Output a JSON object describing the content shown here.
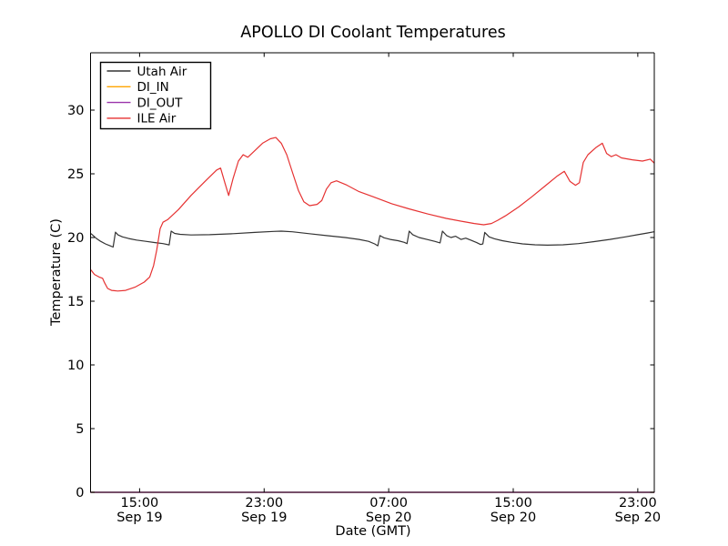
{
  "figure": {
    "title": "APOLLO DI Coolant Temperatures",
    "xlabel": "Date (GMT)",
    "ylabel": "Temperature (C)"
  },
  "chart_data": {
    "type": "line",
    "title": "APOLLO DI Coolant Temperatures",
    "xlabel": "Date (GMT)",
    "ylabel": "Temperature (C)",
    "x_unit": "hours since Sep 19 00:00 GMT",
    "xlim": [
      11.85,
      48.06
    ],
    "ylim": [
      0,
      34.5
    ],
    "grid": false,
    "legend_position": "upper left",
    "y_ticks": [
      0,
      5,
      10,
      15,
      20,
      25,
      30
    ],
    "x_ticks": [
      {
        "value": 15,
        "time": "15:00",
        "date": "Sep 19"
      },
      {
        "value": 23,
        "time": "23:00",
        "date": "Sep 19"
      },
      {
        "value": 31,
        "time": "07:00",
        "date": "Sep 20"
      },
      {
        "value": 39,
        "time": "15:00",
        "date": "Sep 20"
      },
      {
        "value": 47,
        "time": "23:00",
        "date": "Sep 20"
      }
    ],
    "series": [
      {
        "name": "Utah Air",
        "color": "#333333",
        "points": [
          [
            11.88,
            20.3
          ],
          [
            12.0,
            20.17
          ],
          [
            12.2,
            19.95
          ],
          [
            12.5,
            19.7
          ],
          [
            12.8,
            19.5
          ],
          [
            13.1,
            19.35
          ],
          [
            13.3,
            19.25
          ],
          [
            13.45,
            20.42
          ],
          [
            13.62,
            20.2
          ],
          [
            13.9,
            20.05
          ],
          [
            14.3,
            19.92
          ],
          [
            14.8,
            19.8
          ],
          [
            15.4,
            19.7
          ],
          [
            16.0,
            19.6
          ],
          [
            16.5,
            19.52
          ],
          [
            16.9,
            19.42
          ],
          [
            17.03,
            20.5
          ],
          [
            17.25,
            20.32
          ],
          [
            17.6,
            20.25
          ],
          [
            18.3,
            20.2
          ],
          [
            19.5,
            20.22
          ],
          [
            21.0,
            20.3
          ],
          [
            22.4,
            20.4
          ],
          [
            23.6,
            20.48
          ],
          [
            24.1,
            20.5
          ],
          [
            24.8,
            20.45
          ],
          [
            25.9,
            20.3
          ],
          [
            27.0,
            20.15
          ],
          [
            28.2,
            20.0
          ],
          [
            29.1,
            19.85
          ],
          [
            29.7,
            19.7
          ],
          [
            30.1,
            19.5
          ],
          [
            30.3,
            19.35
          ],
          [
            30.44,
            20.15
          ],
          [
            30.7,
            19.98
          ],
          [
            31.1,
            19.85
          ],
          [
            31.6,
            19.75
          ],
          [
            32.0,
            19.62
          ],
          [
            32.18,
            19.52
          ],
          [
            32.32,
            20.5
          ],
          [
            32.55,
            20.22
          ],
          [
            32.95,
            20.0
          ],
          [
            33.45,
            19.85
          ],
          [
            33.95,
            19.7
          ],
          [
            34.3,
            19.58
          ],
          [
            34.45,
            20.5
          ],
          [
            34.72,
            20.15
          ],
          [
            35.0,
            20.0
          ],
          [
            35.3,
            20.1
          ],
          [
            35.65,
            19.85
          ],
          [
            35.95,
            19.95
          ],
          [
            36.3,
            19.78
          ],
          [
            36.65,
            19.6
          ],
          [
            36.9,
            19.45
          ],
          [
            37.05,
            19.5
          ],
          [
            37.17,
            20.4
          ],
          [
            37.45,
            20.05
          ],
          [
            37.8,
            19.9
          ],
          [
            38.3,
            19.75
          ],
          [
            38.9,
            19.62
          ],
          [
            39.6,
            19.5
          ],
          [
            40.4,
            19.43
          ],
          [
            41.2,
            19.4
          ],
          [
            42.2,
            19.43
          ],
          [
            43.2,
            19.52
          ],
          [
            44.2,
            19.68
          ],
          [
            45.2,
            19.85
          ],
          [
            46.2,
            20.05
          ],
          [
            47.0,
            20.22
          ],
          [
            47.6,
            20.35
          ],
          [
            48.05,
            20.45
          ]
        ]
      },
      {
        "name": "DI_IN",
        "color": "#ffa500",
        "points": [
          [
            11.85,
            0
          ],
          [
            48.06,
            0
          ]
        ]
      },
      {
        "name": "DI_OUT",
        "color": "#9933aa",
        "points": [
          [
            11.85,
            0
          ],
          [
            48.06,
            0
          ]
        ]
      },
      {
        "name": "ILE Air",
        "color": "#e63232",
        "points": [
          [
            11.88,
            17.45
          ],
          [
            12.1,
            17.1
          ],
          [
            12.4,
            16.9
          ],
          [
            12.62,
            16.8
          ],
          [
            12.75,
            16.45
          ],
          [
            12.95,
            16.0
          ],
          [
            13.2,
            15.85
          ],
          [
            13.6,
            15.8
          ],
          [
            14.1,
            15.85
          ],
          [
            14.7,
            16.1
          ],
          [
            15.3,
            16.5
          ],
          [
            15.65,
            16.9
          ],
          [
            15.9,
            17.8
          ],
          [
            16.1,
            19.0
          ],
          [
            16.32,
            20.7
          ],
          [
            16.5,
            21.2
          ],
          [
            16.8,
            21.4
          ],
          [
            17.5,
            22.2
          ],
          [
            18.3,
            23.3
          ],
          [
            19.2,
            24.4
          ],
          [
            19.95,
            25.3
          ],
          [
            20.2,
            25.45
          ],
          [
            20.5,
            24.2
          ],
          [
            20.72,
            23.3
          ],
          [
            21.0,
            24.6
          ],
          [
            21.35,
            26.0
          ],
          [
            21.65,
            26.5
          ],
          [
            21.95,
            26.3
          ],
          [
            22.3,
            26.7
          ],
          [
            22.9,
            27.4
          ],
          [
            23.4,
            27.75
          ],
          [
            23.75,
            27.85
          ],
          [
            24.1,
            27.4
          ],
          [
            24.45,
            26.5
          ],
          [
            24.85,
            25.0
          ],
          [
            25.2,
            23.7
          ],
          [
            25.55,
            22.8
          ],
          [
            25.92,
            22.5
          ],
          [
            26.4,
            22.6
          ],
          [
            26.7,
            22.9
          ],
          [
            27.0,
            23.8
          ],
          [
            27.3,
            24.3
          ],
          [
            27.65,
            24.45
          ],
          [
            28.25,
            24.15
          ],
          [
            29.1,
            23.6
          ],
          [
            30.0,
            23.2
          ],
          [
            31.2,
            22.65
          ],
          [
            32.3,
            22.25
          ],
          [
            33.5,
            21.85
          ],
          [
            34.7,
            21.5
          ],
          [
            35.8,
            21.25
          ],
          [
            36.5,
            21.1
          ],
          [
            37.1,
            21.0
          ],
          [
            37.6,
            21.1
          ],
          [
            38.0,
            21.35
          ],
          [
            38.5,
            21.7
          ],
          [
            39.35,
            22.4
          ],
          [
            40.2,
            23.2
          ],
          [
            41.1,
            24.1
          ],
          [
            41.8,
            24.8
          ],
          [
            42.28,
            25.2
          ],
          [
            42.65,
            24.4
          ],
          [
            43.0,
            24.1
          ],
          [
            43.25,
            24.3
          ],
          [
            43.5,
            25.9
          ],
          [
            43.8,
            26.5
          ],
          [
            44.3,
            27.05
          ],
          [
            44.72,
            27.4
          ],
          [
            45.0,
            26.6
          ],
          [
            45.3,
            26.35
          ],
          [
            45.6,
            26.5
          ],
          [
            45.95,
            26.25
          ],
          [
            46.65,
            26.1
          ],
          [
            47.3,
            26.0
          ],
          [
            47.8,
            26.15
          ],
          [
            48.05,
            25.85
          ]
        ]
      }
    ]
  }
}
